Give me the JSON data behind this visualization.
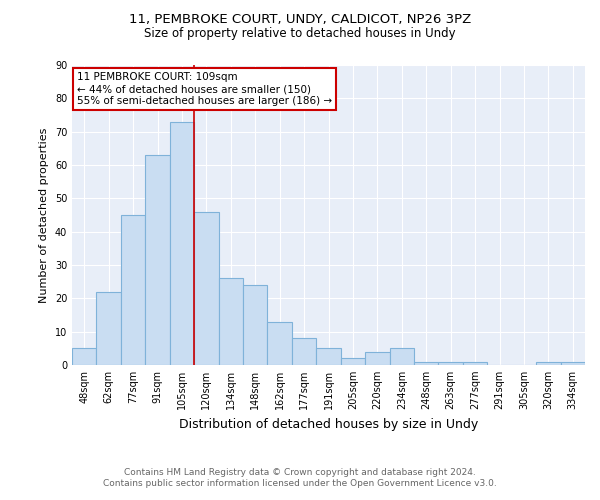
{
  "title_line1": "11, PEMBROKE COURT, UNDY, CALDICOT, NP26 3PZ",
  "title_line2": "Size of property relative to detached houses in Undy",
  "xlabel": "Distribution of detached houses by size in Undy",
  "ylabel": "Number of detached properties",
  "footnote": "Contains HM Land Registry data © Crown copyright and database right 2024.\nContains public sector information licensed under the Open Government Licence v3.0.",
  "bar_labels": [
    "48sqm",
    "62sqm",
    "77sqm",
    "91sqm",
    "105sqm",
    "120sqm",
    "134sqm",
    "148sqm",
    "162sqm",
    "177sqm",
    "191sqm",
    "205sqm",
    "220sqm",
    "234sqm",
    "248sqm",
    "263sqm",
    "277sqm",
    "291sqm",
    "305sqm",
    "320sqm",
    "334sqm"
  ],
  "bar_heights": [
    5,
    22,
    45,
    63,
    73,
    46,
    26,
    24,
    13,
    8,
    5,
    2,
    4,
    5,
    1,
    1,
    1,
    0,
    0,
    1,
    1
  ],
  "bar_color": "#c9ddf2",
  "bar_edge_color": "#7fb2d9",
  "background_color": "#e8eef8",
  "grid_color": "#ffffff",
  "red_line_x": 4.5,
  "annotation_text_line1": "11 PEMBROKE COURT: 109sqm",
  "annotation_text_line2": "← 44% of detached houses are smaller (150)",
  "annotation_text_line3": "55% of semi-detached houses are larger (186) →",
  "annotation_box_color": "#ffffff",
  "annotation_box_edge_color": "#cc0000",
  "ylim": [
    0,
    90
  ],
  "yticks": [
    0,
    10,
    20,
    30,
    40,
    50,
    60,
    70,
    80,
    90
  ],
  "title1_fontsize": 9.5,
  "title2_fontsize": 8.5,
  "ylabel_fontsize": 8,
  "xlabel_fontsize": 9,
  "tick_fontsize": 7,
  "annot_fontsize": 7.5,
  "footnote_fontsize": 6.5,
  "footnote_color": "#666666"
}
